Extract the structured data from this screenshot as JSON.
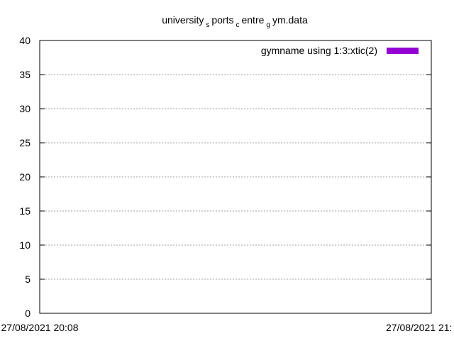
{
  "chart_data": {
    "type": "bar",
    "title_parts": [
      {
        "text": "university",
        "sub": false
      },
      {
        "text": "s",
        "sub": true
      },
      {
        "text": "ports",
        "sub": false
      },
      {
        "text": "c",
        "sub": true
      },
      {
        "text": "entre",
        "sub": false
      },
      {
        "text": "g",
        "sub": true
      },
      {
        "text": "ym.data",
        "sub": false
      }
    ],
    "xlabel": "",
    "ylabel": "",
    "ylim": [
      0,
      40
    ],
    "yticks": [
      0,
      5,
      10,
      15,
      20,
      25,
      30,
      35,
      40
    ],
    "x_tick_labels": [
      "27/08/2021 20:08",
      "27/08/2021 21:"
    ],
    "grid": true,
    "legend_position": "top-right",
    "series": [
      {
        "name": "gymname using 1:3:xtic(2)",
        "color": "#9400d3",
        "values": []
      }
    ]
  }
}
